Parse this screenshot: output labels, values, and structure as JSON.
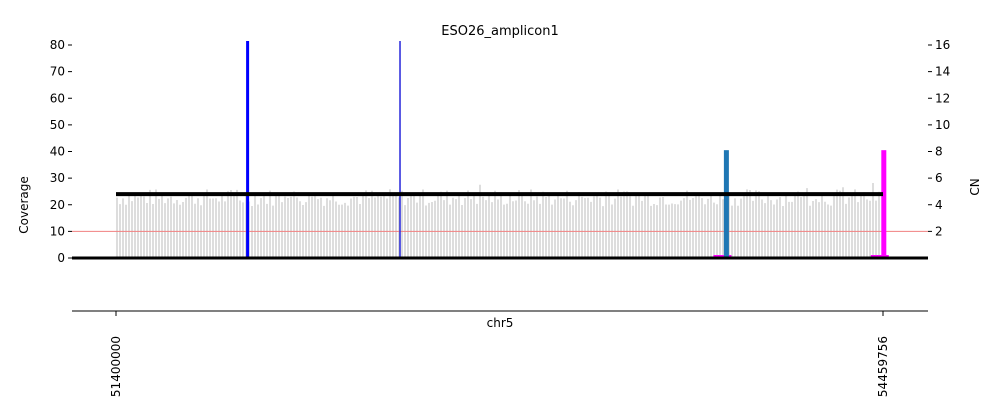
{
  "chart_data": {
    "type": "bar",
    "title": "ESO26_amplicon1",
    "xlabel": "chr5",
    "ylabel_left": "Coverage",
    "ylabel_right": "CN",
    "ylim_left": [
      0,
      80
    ],
    "yticks_left": [
      "0",
      "10",
      "20",
      "30",
      "40",
      "50",
      "60",
      "70",
      "80"
    ],
    "ylim_right": [
      0,
      16
    ],
    "yticks_right": [
      "2",
      "4",
      "6",
      "8",
      "10",
      "12",
      "14",
      "16"
    ],
    "xlim": [
      51400000,
      54459756
    ],
    "xticks": [
      "51400000",
      "54459756"
    ],
    "coverage_threshold": 10,
    "grid": false,
    "segments": [
      {
        "start": 51400000,
        "end": 54459756,
        "cn": 4.8,
        "color": "#000000"
      }
    ],
    "discordant_edges": [
      {
        "pos": 51925000,
        "color": "#0000ff",
        "height": 16.3
      },
      {
        "pos": 52533000,
        "color": "#3333dd",
        "height": 16.3
      },
      {
        "pos": 53831000,
        "color": "#1f77b4",
        "height": 8.1
      },
      {
        "pos": 54459000,
        "color": "#ff00ff",
        "height": 8.1
      }
    ],
    "colors": {
      "coverage": "#9e9e9e",
      "segment": "#000000",
      "threshold": "#f08080",
      "edge_blue": "#0000ff",
      "edge_teal": "#1f77b4",
      "edge_magenta": "#ff00ff"
    }
  }
}
